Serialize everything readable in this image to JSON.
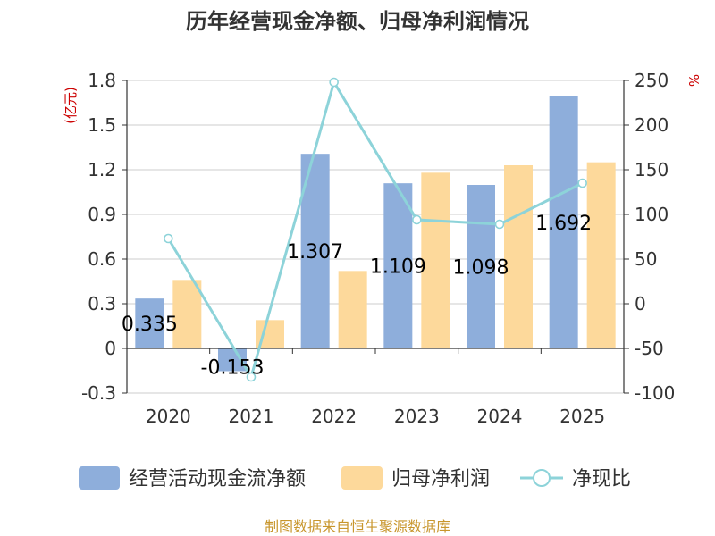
{
  "chart_data": {
    "type": "bar",
    "title": "历年经营现金净额、归母净利润情况",
    "categories": [
      "2020",
      "2021",
      "2022",
      "2023",
      "2024",
      "2025"
    ],
    "series": [
      {
        "name": "经营活动现金流净额",
        "type": "bar",
        "axis": "left",
        "color": "#8eaedb",
        "values": [
          0.335,
          -0.153,
          1.307,
          1.109,
          1.098,
          1.692
        ],
        "labels": [
          "0.335",
          "-0.153",
          "1.307",
          "1.109",
          "1.098",
          "1.692"
        ]
      },
      {
        "name": "归母净利润",
        "type": "bar",
        "axis": "left",
        "color": "#fdd99b",
        "values": [
          0.46,
          0.19,
          0.52,
          1.18,
          1.23,
          1.25
        ]
      },
      {
        "name": "净现比",
        "type": "line",
        "axis": "right",
        "color": "#8dd3d9",
        "values": [
          73,
          -82,
          248,
          94,
          89,
          135
        ]
      }
    ],
    "y_left": {
      "unit": "(亿元)",
      "min": -0.3,
      "max": 1.8,
      "ticks": [
        "-0.3",
        "0",
        "0.3",
        "0.6",
        "0.9",
        "1.2",
        "1.5",
        "1.8"
      ]
    },
    "y_right": {
      "unit": "%",
      "min": -100,
      "max": 250,
      "ticks": [
        "-100",
        "-50",
        "0",
        "50",
        "100",
        "150",
        "200",
        "250"
      ]
    },
    "legend_position": "bottom",
    "grid": true
  },
  "source": "制图数据来自恒生聚源数据库"
}
